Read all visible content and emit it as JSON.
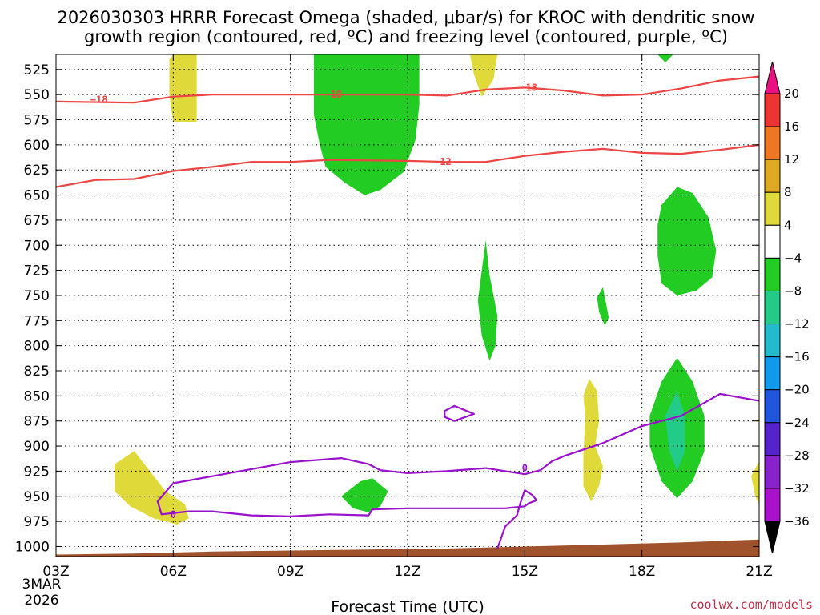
{
  "chart_data": {
    "type": "time-height cross section",
    "title_line1": "2026030303 HRRR Forecast Omega (shaded, μbar/s) for KROC with dendritic snow",
    "title_line2": "growth region (contoured, red, ºC) and freezing level (contoured, purple, ºC)",
    "xlabel": "Forecast Time (UTC)",
    "x_ticks": [
      {
        "hour": 0,
        "label": "03Z"
      },
      {
        "hour": 3,
        "label": "06Z"
      },
      {
        "hour": 6,
        "label": "09Z"
      },
      {
        "hour": 9,
        "label": "12Z"
      },
      {
        "hour": 12,
        "label": "15Z"
      },
      {
        "hour": 15,
        "label": "18Z"
      },
      {
        "hour": 18,
        "label": "21Z"
      }
    ],
    "x_sub_labels": [
      "3MAR",
      "2026"
    ],
    "xlim": [
      0,
      18
    ],
    "ylim": [
      1010,
      510
    ],
    "y_ticks": [
      525,
      550,
      575,
      600,
      625,
      650,
      675,
      700,
      725,
      750,
      775,
      800,
      825,
      850,
      875,
      900,
      925,
      950,
      975,
      1000
    ],
    "colorbar": {
      "levels": [
        20,
        16,
        12,
        8,
        4,
        -4,
        -8,
        -12,
        -16,
        -20,
        -24,
        -28,
        -32,
        -36
      ],
      "level_labels": [
        "20",
        "16",
        "12",
        "8",
        "4",
        "−4",
        "−8",
        "−12",
        "−16",
        "−20",
        "−24",
        "−28",
        "−32",
        "−36"
      ],
      "colors": [
        "#ee3333",
        "#ee7722",
        "#ddaa22",
        "#e0d93a",
        "#ffffff",
        "#22cc22",
        "#22cc88",
        "#22bbcc",
        "#1199ee",
        "#2255dd",
        "#5522cc",
        "#8822cc",
        "#aa11cc",
        "#aaaaaa"
      ],
      "top_color": "#e8117f",
      "bottom_color": "#000000"
    },
    "terrain_color": "#a0522d",
    "omega_regions": [
      {
        "name": "yellow-1",
        "value": 4,
        "color": "#e0d93a",
        "points": [
          [
            3,
            510
          ],
          [
            3.6,
            510
          ],
          [
            3.6,
            577
          ],
          [
            3,
            577
          ],
          [
            2.9,
            550
          ],
          [
            2.9,
            515
          ]
        ]
      },
      {
        "name": "green-big",
        "value": -4,
        "color": "#22cc22",
        "points": [
          [
            6.6,
            510
          ],
          [
            9.3,
            510
          ],
          [
            9.3,
            560
          ],
          [
            9.2,
            595
          ],
          [
            8.9,
            627
          ],
          [
            8.3,
            645
          ],
          [
            7.9,
            650
          ],
          [
            7.4,
            638
          ],
          [
            6.9,
            622
          ],
          [
            6.75,
            600
          ],
          [
            6.6,
            570
          ]
        ]
      },
      {
        "name": "yellow-2",
        "value": 4,
        "color": "#e0d93a",
        "points": [
          [
            10.6,
            510
          ],
          [
            11.3,
            510
          ],
          [
            11.2,
            535
          ],
          [
            10.9,
            552
          ],
          [
            10.7,
            530
          ]
        ]
      },
      {
        "name": "green-top-right",
        "value": -4,
        "color": "#22cc22",
        "points": [
          [
            15.4,
            510
          ],
          [
            15.8,
            510
          ],
          [
            15.6,
            518
          ]
        ]
      },
      {
        "name": "green-mid-right",
        "value": -4,
        "color": "#22cc22",
        "points": [
          [
            15.5,
            660
          ],
          [
            15.9,
            642
          ],
          [
            16.3,
            648
          ],
          [
            16.7,
            672
          ],
          [
            16.9,
            705
          ],
          [
            16.8,
            732
          ],
          [
            16.4,
            745
          ],
          [
            15.9,
            750
          ],
          [
            15.5,
            738
          ],
          [
            15.4,
            710
          ],
          [
            15.4,
            680
          ]
        ]
      },
      {
        "name": "green-sliver-1",
        "value": -4,
        "color": "#22cc22",
        "points": [
          [
            11.0,
            695
          ],
          [
            11.1,
            730
          ],
          [
            11.3,
            770
          ],
          [
            11.25,
            800
          ],
          [
            11.1,
            815
          ],
          [
            10.9,
            790
          ],
          [
            10.8,
            755
          ]
        ]
      },
      {
        "name": "green-sliver-2",
        "value": -4,
        "color": "#22cc22",
        "points": [
          [
            14.0,
            742
          ],
          [
            14.15,
            772
          ],
          [
            14.05,
            780
          ],
          [
            13.9,
            766
          ],
          [
            13.85,
            752
          ]
        ]
      },
      {
        "name": "green-low-right",
        "value": -4,
        "color": "#22cc22",
        "points": [
          [
            15.9,
            812
          ],
          [
            16.3,
            836
          ],
          [
            16.6,
            870
          ],
          [
            16.6,
            905
          ],
          [
            16.3,
            935
          ],
          [
            15.9,
            952
          ],
          [
            15.5,
            935
          ],
          [
            15.2,
            900
          ],
          [
            15.2,
            870
          ],
          [
            15.5,
            836
          ]
        ]
      },
      {
        "name": "teal-core",
        "value": -8,
        "color": "#22cc88",
        "points": [
          [
            15.9,
            845
          ],
          [
            16.1,
            870
          ],
          [
            16.1,
            905
          ],
          [
            15.9,
            925
          ],
          [
            15.7,
            905
          ],
          [
            15.6,
            870
          ]
        ]
      },
      {
        "name": "yellow-3",
        "value": 4,
        "color": "#e0d93a",
        "points": [
          [
            13.65,
            833
          ],
          [
            13.85,
            845
          ],
          [
            13.9,
            875
          ],
          [
            13.8,
            900
          ],
          [
            14.0,
            920
          ],
          [
            13.9,
            940
          ],
          [
            13.7,
            955
          ],
          [
            13.5,
            940
          ],
          [
            13.5,
            910
          ],
          [
            13.55,
            870
          ],
          [
            13.5,
            850
          ]
        ]
      },
      {
        "name": "yellow-4",
        "value": 4,
        "color": "#e0d93a",
        "points": [
          [
            1.5,
            918
          ],
          [
            2.0,
            905
          ],
          [
            2.4,
            925
          ],
          [
            2.8,
            945
          ],
          [
            3.3,
            958
          ],
          [
            3.4,
            972
          ],
          [
            3.1,
            978
          ],
          [
            2.5,
            972
          ],
          [
            1.9,
            960
          ],
          [
            1.5,
            945
          ]
        ]
      },
      {
        "name": "green-small",
        "value": -4,
        "color": "#22cc22",
        "points": [
          [
            7.3,
            950
          ],
          [
            7.8,
            935
          ],
          [
            8.1,
            932
          ],
          [
            8.5,
            945
          ],
          [
            8.3,
            960
          ],
          [
            8.0,
            966
          ],
          [
            7.6,
            962
          ]
        ]
      },
      {
        "name": "yellow-edge",
        "value": 4,
        "color": "#e0d93a",
        "points": [
          [
            17.8,
            930
          ],
          [
            18,
            915
          ],
          [
            18,
            958
          ],
          [
            17.9,
            950
          ]
        ]
      }
    ],
    "dgz_contours": [
      {
        "name": "minus-18",
        "label": "−18",
        "color": "#ee4444",
        "points": [
          [
            0,
            557
          ],
          [
            2,
            558
          ],
          [
            3,
            552
          ],
          [
            4,
            550
          ],
          [
            6,
            550
          ],
          [
            9,
            550
          ],
          [
            10,
            551
          ],
          [
            11,
            545
          ],
          [
            12,
            543
          ],
          [
            13,
            546
          ],
          [
            14,
            551
          ],
          [
            15,
            550
          ],
          [
            16,
            544
          ],
          [
            17,
            536
          ],
          [
            18,
            532
          ]
        ],
        "label_at": [
          [
            1.1,
            555
          ],
          [
            7.1,
            550
          ],
          [
            12.1,
            543
          ]
        ],
        "label_text": [
          "−18",
          "−18",
          "−18"
        ]
      },
      {
        "name": "minus-12",
        "label": "−12",
        "color": "#ee4444",
        "points": [
          [
            0,
            642
          ],
          [
            1,
            635
          ],
          [
            2,
            634
          ],
          [
            3,
            626
          ],
          [
            4,
            622
          ],
          [
            5,
            617
          ],
          [
            6,
            617
          ],
          [
            7,
            615
          ],
          [
            9,
            616
          ],
          [
            10,
            617
          ],
          [
            11,
            617
          ],
          [
            12,
            611
          ],
          [
            13,
            607
          ],
          [
            14,
            604
          ],
          [
            15,
            608
          ],
          [
            16,
            609
          ],
          [
            17,
            605
          ],
          [
            18,
            600
          ]
        ],
        "label_at": [
          [
            9.9,
            617
          ]
        ],
        "label_text": [
          "−12"
        ]
      }
    ],
    "freezing_contours": [
      {
        "name": "zero-main",
        "label": "0",
        "color": "#9911cc",
        "points": [
          [
            3,
            937
          ],
          [
            4,
            930
          ],
          [
            5,
            923
          ],
          [
            6,
            916
          ],
          [
            7.3,
            912
          ],
          [
            8,
            918
          ],
          [
            8.3,
            924
          ],
          [
            9,
            927
          ],
          [
            10,
            925
          ],
          [
            11,
            922
          ],
          [
            12,
            928
          ],
          [
            12.4,
            924
          ],
          [
            12.7,
            915
          ],
          [
            13,
            910
          ],
          [
            14,
            897
          ],
          [
            15,
            880
          ],
          [
            16,
            870
          ],
          [
            17,
            848
          ],
          [
            18,
            855
          ]
        ]
      },
      {
        "name": "zero-lower",
        "label": "0",
        "color": "#9911cc",
        "points": [
          [
            3,
            937
          ],
          [
            2.6,
            955
          ],
          [
            2.7,
            968
          ],
          [
            3.4,
            965
          ],
          [
            4,
            965
          ],
          [
            5,
            969
          ],
          [
            6,
            970
          ],
          [
            7,
            968
          ],
          [
            8,
            969
          ],
          [
            8.1,
            963
          ],
          [
            9,
            962
          ],
          [
            10,
            962
          ],
          [
            11,
            962
          ],
          [
            11.5,
            962
          ],
          [
            12,
            960
          ],
          [
            12.1,
            957
          ],
          [
            12.3,
            954
          ],
          [
            12.2,
            949
          ],
          [
            12.0,
            944
          ],
          [
            11.9,
            955
          ],
          [
            11.8,
            969
          ],
          [
            11.5,
            980
          ],
          [
            11.3,
            1002
          ]
        ]
      },
      {
        "name": "zero-loop",
        "label": "0",
        "color": "#9911cc",
        "points": [
          [
            9.95,
            865
          ],
          [
            10.2,
            860
          ],
          [
            10.7,
            868
          ],
          [
            10.2,
            875
          ],
          [
            9.95,
            871
          ],
          [
            9.95,
            865
          ]
        ]
      }
    ],
    "freezing_labels": [
      {
        "label": "0",
        "at": [
          12,
          922
        ]
      },
      {
        "label": "0",
        "at": [
          3,
          968
        ]
      }
    ],
    "terrain": [
      [
        0,
        1008
      ],
      [
        2,
        1007
      ],
      [
        4,
        1005
      ],
      [
        6,
        1004
      ],
      [
        8,
        1003
      ],
      [
        10,
        1002
      ],
      [
        12,
        1000
      ],
      [
        14,
        998
      ],
      [
        16,
        996
      ],
      [
        18,
        993
      ]
    ]
  },
  "footer": {
    "xlabel": "Forecast Time (UTC)",
    "credit": "coolwx.com/models"
  }
}
